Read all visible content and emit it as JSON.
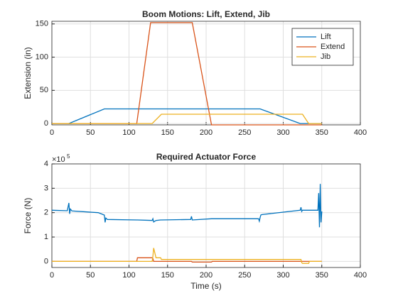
{
  "chart_data": [
    {
      "type": "line",
      "title": "Boom Motions: Lift, Extend, Jib",
      "ylabel": "Extension (in)",
      "x": [
        0,
        22,
        68,
        110,
        128,
        130,
        142,
        182,
        207,
        270,
        322,
        325,
        333,
        350
      ],
      "series": [
        {
          "name": "Lift",
          "color": "#0072bd",
          "values": [
            0,
            0,
            22,
            22,
            22,
            22,
            22,
            22,
            22,
            22,
            0,
            0,
            0,
            0
          ]
        },
        {
          "name": "Extend",
          "color": "#d95319",
          "values": [
            0,
            0,
            0,
            0,
            152,
            152,
            152,
            152,
            -2,
            -2,
            -2,
            -2,
            -2,
            -2
          ]
        },
        {
          "name": "Jib",
          "color": "#edb120",
          "values": [
            0,
            0,
            0,
            0,
            0,
            0,
            14,
            14,
            14,
            14,
            14,
            14,
            0,
            0
          ]
        }
      ],
      "xlim": [
        0,
        400
      ],
      "xticks": [
        0,
        50,
        100,
        150,
        200,
        250,
        300,
        350,
        400
      ],
      "ylim": [
        -2,
        154
      ],
      "yticks": [
        0,
        50,
        100,
        150
      ],
      "grid": true,
      "legend": "northeast"
    },
    {
      "type": "line",
      "title": "Required Actuator Force",
      "ylabel": "Force (N)",
      "xlabel": "Time (s)",
      "y_exponent_base": "×10",
      "y_exponent_power": "5",
      "x": [
        0,
        20,
        22,
        23,
        24,
        26,
        60,
        68,
        69,
        70,
        72,
        110,
        111,
        130,
        131,
        132,
        135,
        141,
        142,
        180,
        181,
        182,
        207,
        208,
        268,
        269,
        270,
        271,
        272,
        322,
        323,
        324,
        325,
        330,
        333,
        334,
        345,
        346,
        347,
        348,
        349,
        350
      ],
      "series": [
        {
          "color": "#0072bd",
          "values": [
            210000,
            208000,
            240000,
            195000,
            215000,
            207000,
            200000,
            190000,
            160000,
            178000,
            172000,
            170000,
            170000,
            168000,
            175000,
            162000,
            168000,
            170000,
            170000,
            172000,
            185000,
            170000,
            175000,
            175000,
            175000,
            165000,
            180000,
            190000,
            192000,
            210000,
            222000,
            205000,
            210000,
            210000,
            210000,
            210000,
            210000,
            280000,
            140000,
            318000,
            160000,
            205000
          ]
        },
        {
          "color": "#d95319",
          "values": [
            0,
            0,
            0,
            0,
            0,
            0,
            0,
            0,
            0,
            0,
            0,
            0,
            15000,
            15000,
            12000,
            0,
            0,
            0,
            0,
            0,
            0,
            -3000,
            -3000,
            0,
            0,
            0,
            0,
            0,
            0,
            0,
            0,
            0,
            0,
            0,
            0,
            0,
            0,
            0,
            0,
            0,
            0,
            0
          ]
        },
        {
          "color": "#edb120",
          "values": [
            0,
            0,
            0,
            0,
            0,
            0,
            0,
            0,
            0,
            0,
            0,
            0,
            0,
            0,
            20000,
            55000,
            15000,
            15000,
            8000,
            8000,
            8000,
            8000,
            8000,
            8000,
            8000,
            8000,
            8000,
            8000,
            8000,
            8000,
            8000,
            -5000,
            -8000,
            -8000,
            -8000,
            0,
            0,
            0,
            0,
            0,
            0,
            0
          ]
        }
      ],
      "xlim": [
        0,
        400
      ],
      "xticks": [
        0,
        50,
        100,
        150,
        200,
        250,
        300,
        350,
        400
      ],
      "ylim": [
        -25000,
        400000
      ],
      "yticks": [
        {
          "value": 0,
          "label": "0"
        },
        {
          "value": 100000,
          "label": "1"
        },
        {
          "value": 200000,
          "label": "2"
        },
        {
          "value": 300000,
          "label": "3"
        },
        {
          "value": 400000,
          "label": "4"
        }
      ],
      "grid": true
    }
  ]
}
